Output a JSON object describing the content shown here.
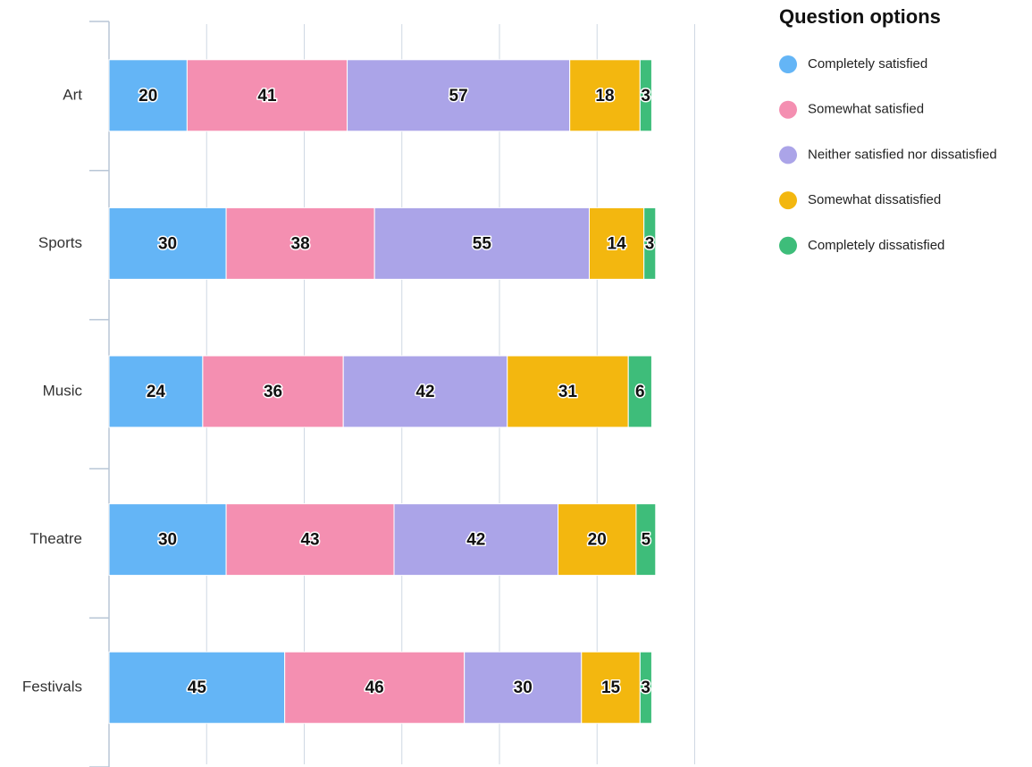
{
  "chart_data": {
    "type": "stacked-bar",
    "orientation": "horizontal",
    "legend_title": "Question options",
    "categories": [
      "Art",
      "Sports",
      "Music",
      "Theatre",
      "Festivals"
    ],
    "series": [
      {
        "name": "Completely satisfied",
        "color": "#64b5f6",
        "values": [
          20,
          30,
          24,
          30,
          45
        ]
      },
      {
        "name": "Somewhat satisfied",
        "color": "#f48fb1",
        "values": [
          41,
          38,
          36,
          43,
          46
        ]
      },
      {
        "name": "Neither satisfied nor dissatisfied",
        "color": "#aba4e8",
        "values": [
          57,
          55,
          42,
          42,
          30
        ]
      },
      {
        "name": "Somewhat dissatisfied",
        "color": "#f3b70f",
        "values": [
          18,
          14,
          31,
          20,
          15
        ]
      },
      {
        "name": "Completely dissatisfied",
        "color": "#3ebd7a",
        "values": [
          3,
          3,
          6,
          5,
          3
        ]
      }
    ],
    "xlim": [
      0,
      150
    ],
    "xticks": [
      0,
      25,
      50,
      75,
      100,
      125,
      150
    ],
    "grid": true,
    "legend": "right"
  }
}
